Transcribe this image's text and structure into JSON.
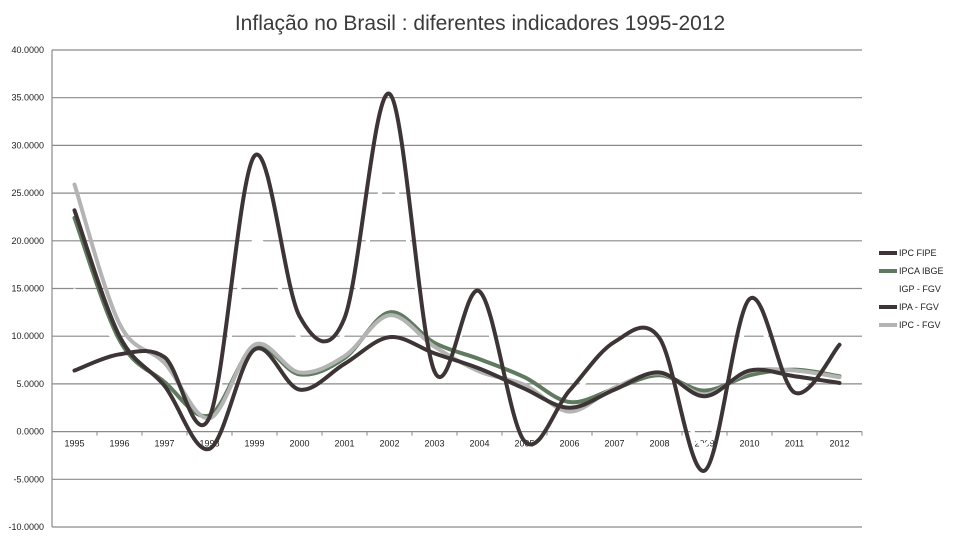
{
  "chart_data": {
    "type": "line",
    "title": "Inflação no Brasil : diferentes indicadores 1995-2012",
    "xlabel": "",
    "ylabel": "",
    "ylim": [
      -10,
      40
    ],
    "yticks": [
      40,
      35,
      30,
      25,
      20,
      15,
      10,
      5,
      0,
      -5,
      -10
    ],
    "ytick_labels": [
      "40.0000",
      "35.0000",
      "30.0000",
      "25.0000",
      "20.0000",
      "15.0000",
      "10.0000",
      "5.0000",
      "0.0000",
      "-5.0000",
      "-10.0000"
    ],
    "grid": true,
    "legend_position": "right",
    "categories": [
      "1995",
      "1996",
      "1997",
      "1998",
      "1999",
      "2000",
      "2001",
      "2002",
      "2003",
      "2004",
      "2005",
      "2006",
      "2007",
      "2008",
      "2009",
      "2010",
      "2011",
      "2012"
    ],
    "series": [
      {
        "name": "IPC FIPE",
        "color": "#3d3535",
        "values": [
          23.2,
          10.0,
          4.8,
          -1.8,
          8.6,
          4.4,
          7.1,
          9.9,
          8.2,
          6.6,
          4.5,
          2.5,
          4.4,
          6.2,
          3.7,
          6.4,
          5.8,
          5.1
        ]
      },
      {
        "name": "IPCA IBGE",
        "color": "#5f7a5e",
        "values": [
          22.4,
          9.6,
          5.2,
          1.7,
          8.9,
          6.0,
          7.7,
          12.5,
          9.3,
          7.6,
          5.7,
          3.1,
          4.5,
          5.9,
          4.3,
          5.9,
          6.5,
          5.8
        ]
      },
      {
        "name": "IGP - FGV",
        "color": "#ffffff",
        "values": [
          14.8,
          9.3,
          7.5,
          1.7,
          20.0,
          9.8,
          10.4,
          26.4,
          7.7,
          12.1,
          1.2,
          3.8,
          7.9,
          9.1,
          -1.4,
          11.3,
          5.0,
          8.1
        ]
      },
      {
        "name": "IPA - FGV",
        "color": "#3d3535",
        "values": [
          6.4,
          8.1,
          7.8,
          1.5,
          28.9,
          12.1,
          11.9,
          35.4,
          6.3,
          14.7,
          -1.0,
          4.3,
          9.4,
          9.8,
          -4.1,
          13.9,
          4.1,
          9.1
        ]
      },
      {
        "name": "IPC - FGV",
        "color": "#b4b4b4",
        "values": [
          25.9,
          11.3,
          7.2,
          1.4,
          9.1,
          6.2,
          7.9,
          12.2,
          8.9,
          6.3,
          4.9,
          2.1,
          4.6,
          6.1,
          3.9,
          6.3,
          6.4,
          5.7
        ]
      }
    ]
  }
}
